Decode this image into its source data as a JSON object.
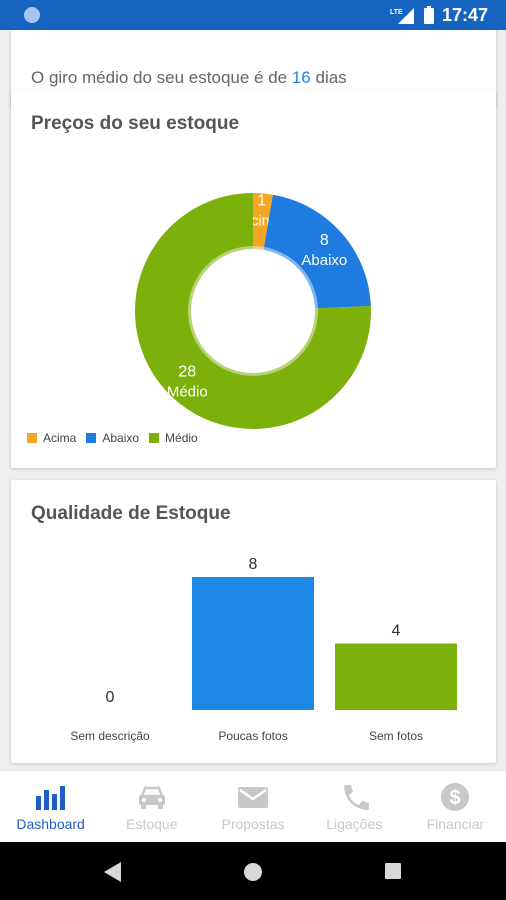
{
  "status_bar": {
    "time": "17:47",
    "network": "LTE"
  },
  "turnover": {
    "prefix": "O giro médio do seu estoque é de ",
    "value": "16",
    "suffix": " dias"
  },
  "prices_card": {
    "title": "Preços do seu estoque"
  },
  "quality_card": {
    "title": "Qualidade de Estoque"
  },
  "chart_data": [
    {
      "type": "pie",
      "title": "Preços do seu estoque",
      "labels": [
        "Acima",
        "Abaixo",
        "Médio"
      ],
      "values": [
        1,
        8,
        28
      ],
      "colors": [
        "#f5a623",
        "#1e7be0",
        "#7cb00a"
      ],
      "legend": "bottom-left"
    },
    {
      "type": "bar",
      "title": "Qualidade de Estoque",
      "categories": [
        "Sem descrição",
        "Poucas fotos",
        "Sem fotos"
      ],
      "values": [
        0,
        8,
        4
      ],
      "colors": [
        "#1e88e5",
        "#1e88e5",
        "#7cb00a"
      ]
    }
  ],
  "nav": {
    "items": [
      {
        "label": "Dashboard",
        "icon": "bar-chart-icon",
        "active": true
      },
      {
        "label": "Estoque",
        "icon": "car-icon",
        "active": false
      },
      {
        "label": "Propostas",
        "icon": "mail-icon",
        "active": false
      },
      {
        "label": "Ligações",
        "icon": "phone-icon",
        "active": false
      },
      {
        "label": "Financiar",
        "icon": "dollar-icon",
        "active": false
      }
    ]
  }
}
